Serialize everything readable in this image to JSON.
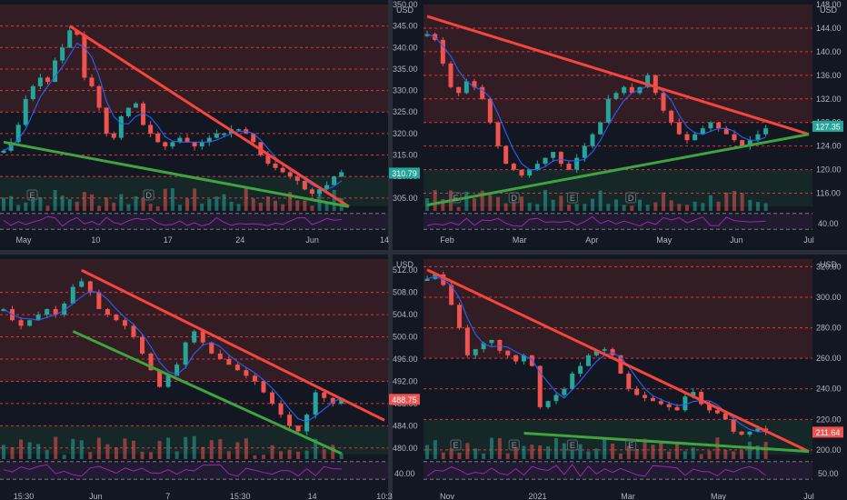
{
  "colors": {
    "background": "#131722",
    "resistance_zone": "#3a1e25",
    "support_zone": "#17302a",
    "level_line": "#f23645",
    "trend_red": "#f5453c",
    "trend_green": "#3fa33f",
    "candle_up": "#26a69a",
    "candle_down": "#ef5350",
    "ma_line": "#2962ff",
    "rsi_line": "#9c27b0",
    "axis_text": "#b2b5be",
    "price_tag_green": "#26a69a",
    "price_tag_red": "#ef5350"
  },
  "chart_data": [
    {
      "type": "candlestick",
      "panel": "top-left",
      "currency": "USD",
      "x_tick_labels": [
        "May",
        "10",
        "17",
        "24",
        "Jun",
        "14"
      ],
      "y_tick_labels": [
        "350.00",
        "345.00",
        "340.00",
        "335.00",
        "330.00",
        "325.00",
        "320.00",
        "315.00",
        "310.00",
        "305.00"
      ],
      "ylim": [
        302,
        350
      ],
      "last_price": "310.79",
      "last_price_color": "green",
      "close_series": [
        316,
        318,
        322,
        328,
        331,
        333,
        332,
        337,
        340,
        344,
        343,
        333,
        331,
        326,
        320,
        319,
        324,
        326,
        327,
        322,
        320,
        318,
        317,
        318,
        319,
        318,
        317,
        318,
        319,
        320,
        320,
        321,
        321,
        320,
        318,
        315,
        313,
        312,
        311,
        310,
        309,
        307,
        306,
        307,
        308,
        310,
        311
      ],
      "horizontal_levels": [
        345,
        340,
        335,
        330,
        325,
        320,
        315,
        310,
        305
      ],
      "resistance_line": {
        "from": [
          9,
          345
        ],
        "to": [
          47,
          303
        ]
      },
      "support_line": {
        "from": [
          0,
          318
        ],
        "to": [
          47,
          303
        ]
      },
      "earnings_markers": [
        "E",
        "D"
      ],
      "series": [
        {
          "values": []
        }
      ]
    },
    {
      "type": "candlestick",
      "panel": "top-right",
      "currency": "USD",
      "x_tick_labels": [
        "Feb",
        "Mar",
        "Apr",
        "May",
        "Jun",
        "Jul"
      ],
      "y_tick_labels": [
        "148.00",
        "144.00",
        "140.00",
        "136.00",
        "132.00",
        "128.00",
        "124.00",
        "120.00",
        "116.00"
      ],
      "y_tick_labels_rsi": [
        "40.00"
      ],
      "ylim": [
        113,
        148
      ],
      "last_price": "127.35",
      "last_price_color": "green",
      "close_series": [
        143,
        142,
        138,
        134,
        133,
        135,
        134,
        132,
        128,
        124,
        121,
        120,
        119,
        120,
        121,
        122,
        123,
        121,
        120,
        122,
        124,
        126,
        128,
        132,
        133,
        134,
        133,
        134,
        136,
        133,
        130,
        128,
        126,
        125,
        126,
        127,
        128,
        127,
        126,
        125,
        124,
        125,
        126,
        127
      ],
      "horizontal_levels": [
        144,
        140,
        136,
        132,
        128,
        124,
        120,
        116
      ],
      "resistance_line": {
        "from": [
          0,
          146
        ],
        "to": [
          56,
          126
        ]
      },
      "support_line": {
        "from": [
          0,
          114
        ],
        "to": [
          56,
          126
        ]
      },
      "earnings_markers": [
        "E",
        "D",
        "E",
        "D"
      ]
    },
    {
      "type": "candlestick",
      "panel": "bottom-left",
      "currency": "USD",
      "x_tick_labels": [
        "15:30",
        "Jun",
        "7",
        "15:30",
        "14",
        "10:3"
      ],
      "y_tick_labels": [
        "512.00",
        "508.00",
        "504.00",
        "500.00",
        "496.00",
        "492.00",
        "488.00",
        "484.00",
        "480.00"
      ],
      "y_tick_labels_rsi": [
        "40.00"
      ],
      "ylim": [
        478,
        514
      ],
      "last_price": "488.75",
      "last_price_color": "red",
      "close_series": [
        505,
        503,
        502,
        503,
        504,
        505,
        504,
        506,
        509,
        510,
        508,
        505,
        504,
        503,
        502,
        500,
        497,
        494,
        491,
        493,
        495,
        499,
        501,
        499,
        497,
        496,
        495,
        494,
        493,
        492,
        490,
        488,
        486,
        484,
        483,
        486,
        490,
        489,
        488,
        489
      ],
      "horizontal_levels": [
        508,
        504,
        500,
        496,
        492,
        488,
        484,
        480
      ],
      "resistance_line": {
        "from": [
          9,
          512
        ],
        "to": [
          47,
          485
        ]
      },
      "support_line": {
        "from": [
          8,
          501
        ],
        "to": [
          39,
          479
        ]
      }
    },
    {
      "type": "candlestick",
      "panel": "bottom-right",
      "currency": "USD",
      "x_tick_labels": [
        "Nov",
        "2021",
        "Mar",
        "May",
        "Jul"
      ],
      "y_tick_labels": [
        "320.00",
        "300.00",
        "280.00",
        "260.00",
        "240.00",
        "220.00",
        "200.00"
      ],
      "y_tick_labels_rsi": [
        "50.00"
      ],
      "ylim": [
        194,
        325
      ],
      "last_price": "211.64",
      "last_price_color": "red",
      "close_series": [
        312,
        315,
        308,
        295,
        280,
        262,
        266,
        270,
        272,
        265,
        262,
        258,
        262,
        255,
        228,
        232,
        236,
        240,
        250,
        255,
        262,
        265,
        266,
        262,
        250,
        240,
        236,
        234,
        232,
        230,
        228,
        226,
        235,
        238,
        230,
        226,
        224,
        220,
        212,
        210,
        212,
        214,
        212
      ],
      "horizontal_levels": [
        320,
        300,
        280,
        260,
        240,
        220,
        200
      ],
      "resistance_line": {
        "from": [
          0,
          318
        ],
        "to": [
          55,
          199
        ]
      },
      "support_line": {
        "from": [
          12,
          211
        ],
        "to": [
          55,
          199
        ]
      },
      "earnings_markers": [
        "E",
        "E",
        "E",
        "E"
      ]
    }
  ]
}
